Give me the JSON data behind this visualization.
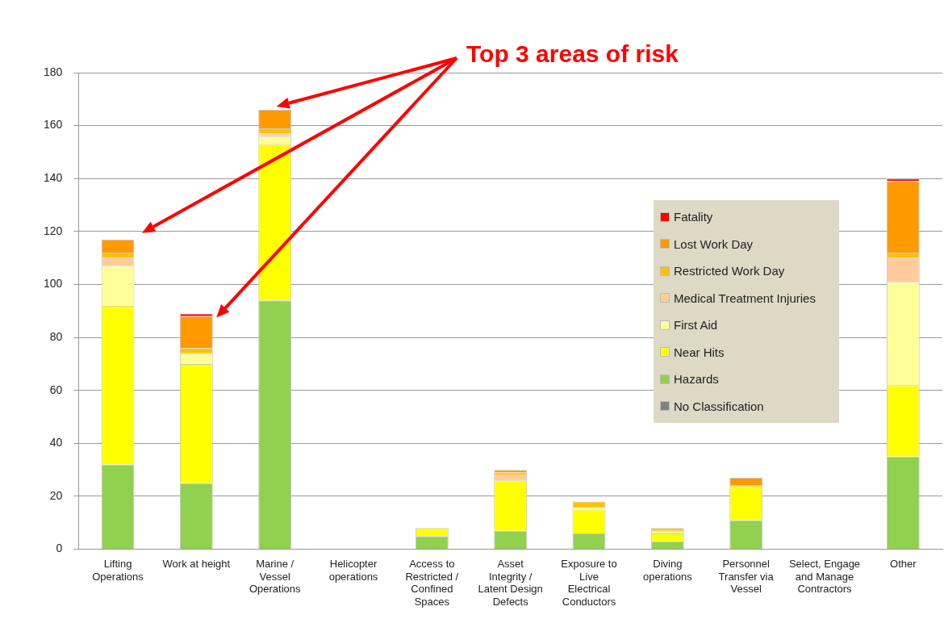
{
  "chart_data": {
    "type": "bar",
    "stacked": true,
    "grid": "y",
    "legend": "right",
    "categories": [
      "Lifting Operations",
      "Work at height",
      "Marine / Vessel Operations",
      "Helicopter operations",
      "Access to Restricted / Confined Spaces",
      "Asset Integrity / Latent Design Defects",
      "Exposure to Live Electrical Conductors",
      "Diving operations",
      "Personnel Transfer via Vessel",
      "Select, Engage and Manage Contractors",
      "Other"
    ],
    "ylim": [
      0,
      180
    ],
    "yticks": [
      0,
      20,
      40,
      60,
      80,
      100,
      120,
      140,
      160,
      180
    ],
    "series": [
      {
        "name": "No Classification",
        "color": "#808080",
        "values": [
          0,
          0,
          0,
          0,
          0,
          0,
          0,
          0,
          0,
          0,
          0
        ]
      },
      {
        "name": "Hazards",
        "color": "#92d050",
        "values": [
          32,
          25,
          94,
          0,
          5,
          7,
          6,
          3,
          11,
          0,
          35
        ]
      },
      {
        "name": "Near Hits",
        "color": "#ffff00",
        "values": [
          60,
          45,
          59,
          0,
          3,
          19,
          9,
          3,
          13,
          0,
          27
        ]
      },
      {
        "name": "First Aid",
        "color": "#ffff99",
        "values": [
          15,
          4,
          3,
          0,
          0,
          0,
          1,
          1,
          0,
          0,
          39
        ]
      },
      {
        "name": "Medical Treatment Injuries",
        "color": "#ffcc99",
        "values": [
          3,
          0,
          1,
          0,
          0,
          2,
          0,
          0,
          0,
          0,
          9
        ]
      },
      {
        "name": "Restricted Work Day",
        "color": "#ffc000",
        "values": [
          2,
          2,
          2,
          0,
          0,
          1,
          2,
          1,
          0,
          0,
          2
        ]
      },
      {
        "name": "Lost Work Day",
        "color": "#ff9900",
        "values": [
          5,
          12,
          7,
          0,
          0,
          1,
          0,
          0,
          3,
          0,
          27
        ]
      },
      {
        "name": "Fatality",
        "color": "#ff0000",
        "values": [
          0,
          1,
          0,
          0,
          0,
          0,
          0,
          0,
          0,
          0,
          1
        ]
      }
    ],
    "annotations": [
      {
        "text": "Top 3 areas of risk"
      }
    ]
  }
}
